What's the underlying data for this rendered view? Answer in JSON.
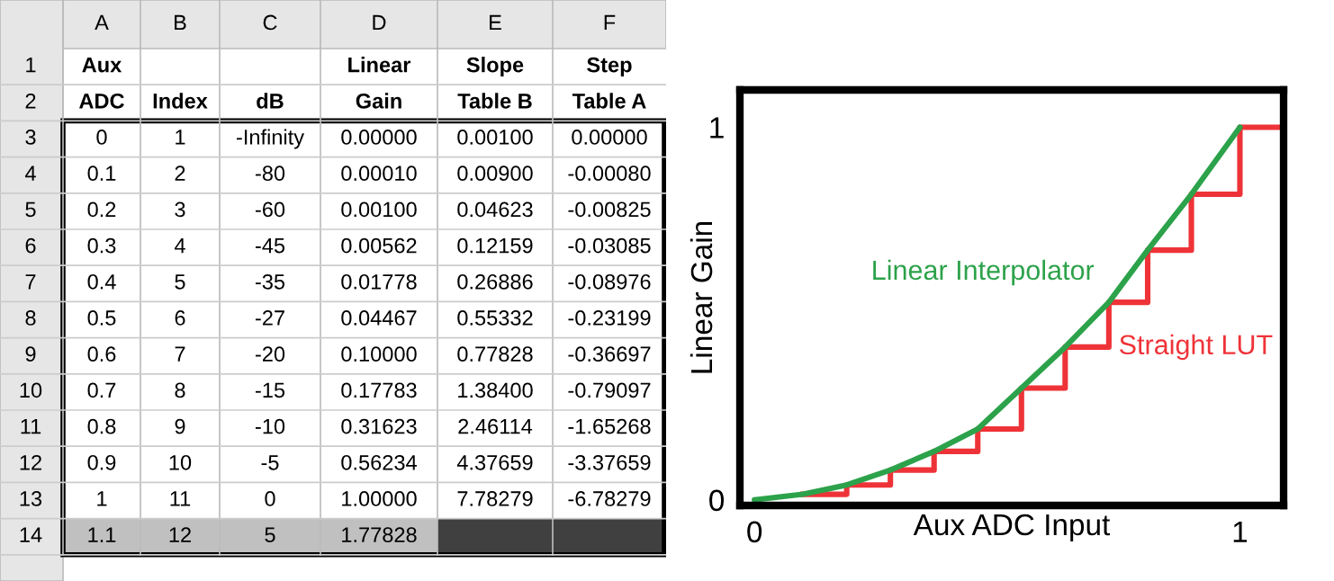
{
  "chart_data": [
    {
      "type": "heatmap",
      "categories": [
        "A",
        "B",
        "C",
        "D",
        "E",
        "F"
      ],
      "cells": [
        [
          null,
          null,
          null,
          null,
          null,
          null
        ],
        [
          null,
          null,
          null,
          null,
          null,
          null
        ],
        [
          null,
          null,
          null,
          null,
          null,
          null
        ],
        [
          null,
          null,
          null,
          null,
          null,
          null
        ],
        [
          null,
          null,
          null,
          null,
          null,
          null
        ],
        [
          null,
          null,
          null,
          null,
          null,
          null
        ],
        [
          null,
          null,
          null,
          null,
          null,
          null
        ],
        [
          null,
          null,
          null,
          null,
          null,
          null
        ],
        [
          null,
          null,
          null,
          null,
          null,
          null
        ],
        [
          null,
          null,
          null,
          null,
          null,
          null
        ],
        [
          null,
          null,
          null,
          null,
          null,
          null
        ],
        [
          null,
          null,
          null,
          null,
          null,
          null
        ],
        [
          null,
          null,
          null,
          null,
          null,
          null
        ],
        [
          null,
          null,
          null,
          null,
          null,
          null
        ]
      ],
      "y_categories": [
        "1",
        "2",
        "3",
        "4",
        "5",
        "6",
        "7",
        "8",
        "9",
        "10",
        "11",
        "12",
        "13",
        "14"
      ],
      "cell_labels": [
        [
          "Aux",
          null,
          null,
          "Linear",
          "Slope",
          "Step"
        ],
        [
          "ADC",
          "Index",
          "dB",
          "Gain",
          "Table B",
          "Table A"
        ],
        [
          "0",
          "1",
          "-Infinity",
          "0.00000",
          "0.00100",
          "0.00000"
        ],
        [
          "0.1",
          "2",
          "-80",
          "0.00010",
          "0.00900",
          "-0.00080"
        ],
        [
          "0.2",
          "3",
          "-60",
          "0.00100",
          "0.04623",
          "-0.00825"
        ],
        [
          "0.3",
          "4",
          "-45",
          "0.00562",
          "0.12159",
          "-0.03085"
        ],
        [
          "0.4",
          "5",
          "-35",
          "0.01778",
          "0.26886",
          "-0.08976"
        ],
        [
          "0.5",
          "6",
          "-27",
          "0.04467",
          "0.55332",
          "-0.23199"
        ],
        [
          "0.6",
          "7",
          "-20",
          "0.10000",
          "0.77828",
          "-0.36697"
        ],
        [
          "0.7",
          "8",
          "-15",
          "0.17783",
          "1.38400",
          "-0.79097"
        ],
        [
          "0.8",
          "9",
          "-10",
          "0.31623",
          "2.46114",
          "-1.65268"
        ],
        [
          "0.9",
          "10",
          "-5",
          "0.56234",
          "4.37659",
          "-3.37659"
        ],
        [
          "1",
          "11",
          "0",
          "1.00000",
          "7.78279",
          "-6.78279"
        ],
        [
          "1.1",
          "12",
          "5",
          "1.77828",
          null,
          null
        ]
      ]
    },
    {
      "type": "line",
      "xlabel": "Aux ADC Input",
      "ylabel": "Linear Gain",
      "xlim": [
        -0.03,
        1.09
      ],
      "ylim": [
        -0.015,
        1.1
      ],
      "xticks": [
        0,
        1
      ],
      "yticks": [
        0,
        1
      ],
      "grid": false,
      "legend": false,
      "series": [
        {
          "name": "Straight LUT",
          "type": "step",
          "color": "#ee3338",
          "x": [
            0.1,
            0.19,
            0.28,
            0.37,
            0.46,
            0.55,
            0.64,
            0.73,
            0.81,
            0.9,
            1,
            1.08
          ],
          "values": [
            0.015,
            0.04,
            0.08,
            0.13,
            0.19,
            0.3,
            0.41,
            0.53,
            0.67,
            0.82,
            1,
            1
          ]
        },
        {
          "name": "Linear Interpolator",
          "type": "line",
          "color": "#2ca24a",
          "x": [
            0,
            0.1,
            0.19,
            0.28,
            0.37,
            0.46,
            0.55,
            0.64,
            0.73,
            0.81,
            0.9,
            1
          ],
          "values": [
            0,
            0.015,
            0.04,
            0.08,
            0.13,
            0.19,
            0.3,
            0.41,
            0.53,
            0.67,
            0.82,
            1
          ]
        }
      ]
    }
  ]
}
